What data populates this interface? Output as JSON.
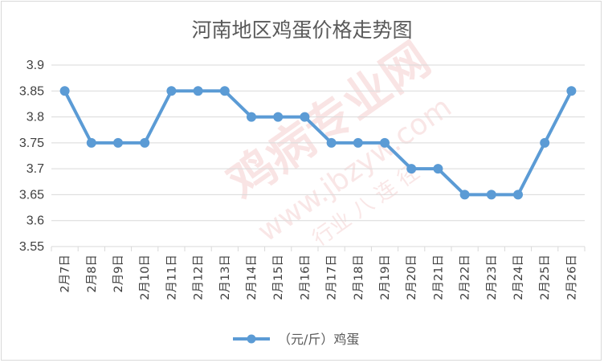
{
  "chart_data": {
    "type": "line",
    "title": "河南地区鸡蛋价格走势图",
    "categories": [
      "2月7日",
      "2月8日",
      "2月9日",
      "2月10日",
      "2月11日",
      "2月12日",
      "2月13日",
      "2月14日",
      "2月15日",
      "2月16日",
      "2月17日",
      "2月18日",
      "2月19日",
      "2月20日",
      "2月21日",
      "2月22日",
      "2月23日",
      "2月24日",
      "2月25日",
      "2月26日"
    ],
    "series": [
      {
        "name": "（元/斤）鸡蛋",
        "color": "#5b9bd5",
        "values": [
          3.85,
          3.75,
          3.75,
          3.75,
          3.85,
          3.85,
          3.85,
          3.8,
          3.8,
          3.8,
          3.75,
          3.75,
          3.75,
          3.7,
          3.7,
          3.65,
          3.65,
          3.65,
          3.75,
          3.85
        ]
      }
    ],
    "yticks": [
      "3.55",
      "3.6",
      "3.65",
      "3.7",
      "3.75",
      "3.8",
      "3.85",
      "3.9"
    ],
    "ylim": [
      3.55,
      3.9
    ],
    "grid": true,
    "legend": "bottom"
  },
  "watermark": {
    "text": "鸡病专业网",
    "url": "www.jbzyw.com",
    "slogan": "行业 八 连 径"
  }
}
